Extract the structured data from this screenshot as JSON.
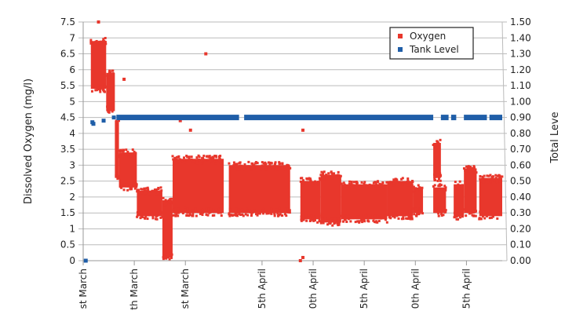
{
  "chart_data": {
    "type": "scatter",
    "title": "",
    "ylabel_left": "Dissolved Oxygen (mg/l)",
    "ylabel_right": "Total Leve",
    "y_left": {
      "min": 0,
      "max": 7.5,
      "ticks": [
        "0",
        "0.5",
        "1",
        "1.5",
        "2",
        "2.5",
        "3",
        "3.5",
        "4",
        "4.5",
        "5",
        "5.5",
        "6",
        "6.5",
        "7",
        "7.5"
      ]
    },
    "y_right": {
      "min": 0,
      "max": 1.5,
      "ticks": [
        "0.00",
        "0.10",
        "0.20",
        "0.30",
        "0.40",
        "0.50",
        "0.60",
        "0.70",
        "0.80",
        "0.90",
        "1.00",
        "1.10",
        "1.20",
        "1.30",
        "1.40",
        "1.50"
      ]
    },
    "x_ticks": [
      {
        "day": 1,
        "label": "st March"
      },
      {
        "day": 11,
        "label": "th March"
      },
      {
        "day": 21,
        "label": "st March"
      },
      {
        "day": 36,
        "label": "5th April"
      },
      {
        "day": 46,
        "label": "0th April"
      },
      {
        "day": 56,
        "label": "5th April"
      },
      {
        "day": 66,
        "label": "0th April"
      },
      {
        "day": 76,
        "label": "5th April"
      }
    ],
    "x_range": [
      1,
      83
    ],
    "legend": {
      "position": "top-right",
      "entries": [
        "Oxygen",
        "Tank Level"
      ]
    },
    "colors": {
      "oxygen": "#e8372c",
      "tank": "#1f5ea8",
      "grid": "#bbbbbb"
    },
    "series": [
      {
        "name": "Oxygen",
        "axis": "left",
        "bands": [
          {
            "x": [
              2.5,
              5.5
            ],
            "y": [
              5.3,
              7.0
            ]
          },
          {
            "x": [
              5.5,
              7.2
            ],
            "y": [
              4.6,
              6.0
            ]
          },
          {
            "x": [
              7.2,
              8.0
            ],
            "y": [
              2.5,
              4.5
            ]
          },
          {
            "x": [
              8.0,
              11.5
            ],
            "y": [
              2.2,
              3.5
            ]
          },
          {
            "x": [
              11.5,
              16.5
            ],
            "y": [
              1.3,
              2.3
            ]
          },
          {
            "x": [
              16.5,
              18.5
            ],
            "y": [
              0.0,
              2.0
            ]
          },
          {
            "x": [
              18.5,
              28.5
            ],
            "y": [
              1.4,
              3.3
            ]
          },
          {
            "x": [
              29.5,
              41.5
            ],
            "y": [
              1.4,
              3.1
            ]
          },
          {
            "x": [
              43.5,
              47.5
            ],
            "y": [
              1.2,
              2.6
            ]
          },
          {
            "x": [
              47.5,
              51.5
            ],
            "y": [
              1.1,
              2.8
            ]
          },
          {
            "x": [
              51.5,
              60.5
            ],
            "y": [
              1.2,
              2.5
            ]
          },
          {
            "x": [
              60.5,
              65.5
            ],
            "y": [
              1.3,
              2.6
            ]
          },
          {
            "x": [
              65.5,
              67.5
            ],
            "y": [
              1.4,
              2.4
            ]
          },
          {
            "x": [
              69.5,
              71.0
            ],
            "y": [
              2.5,
              3.8
            ]
          },
          {
            "x": [
              69.5,
              72.0
            ],
            "y": [
              1.4,
              2.4
            ]
          },
          {
            "x": [
              73.5,
              75.5
            ],
            "y": [
              1.3,
              2.5
            ]
          },
          {
            "x": [
              75.5,
              78.0
            ],
            "y": [
              1.4,
              3.0
            ]
          },
          {
            "x": [
              78.5,
              83.0
            ],
            "y": [
              1.3,
              2.7
            ]
          }
        ],
        "outliers": [
          {
            "x": 4,
            "y": 7.5
          },
          {
            "x": 9,
            "y": 5.7
          },
          {
            "x": 25,
            "y": 6.5
          },
          {
            "x": 20,
            "y": 4.4
          },
          {
            "x": 22,
            "y": 4.1
          },
          {
            "x": 44,
            "y": 4.1
          },
          {
            "x": 43.5,
            "y": 0.0
          },
          {
            "x": 44,
            "y": 0.1
          },
          {
            "x": 17,
            "y": 0.1
          }
        ]
      },
      {
        "name": "Tank Level",
        "axis": "right",
        "points": [
          {
            "x": 1.5,
            "y": 0.0
          },
          {
            "x": 2.8,
            "y": 0.87
          },
          {
            "x": 3.0,
            "y": 0.86
          },
          {
            "x": 5.0,
            "y": 0.88
          },
          {
            "x": 7.0,
            "y": 0.9
          }
        ],
        "segments": [
          [
            7.5,
            31.5
          ],
          [
            32.5,
            69.5
          ],
          [
            71.0,
            72.5
          ],
          [
            73.0,
            74.0
          ],
          [
            75.5,
            80.0
          ],
          [
            80.5,
            83.0
          ]
        ],
        "segment_level": 0.9
      }
    ]
  }
}
